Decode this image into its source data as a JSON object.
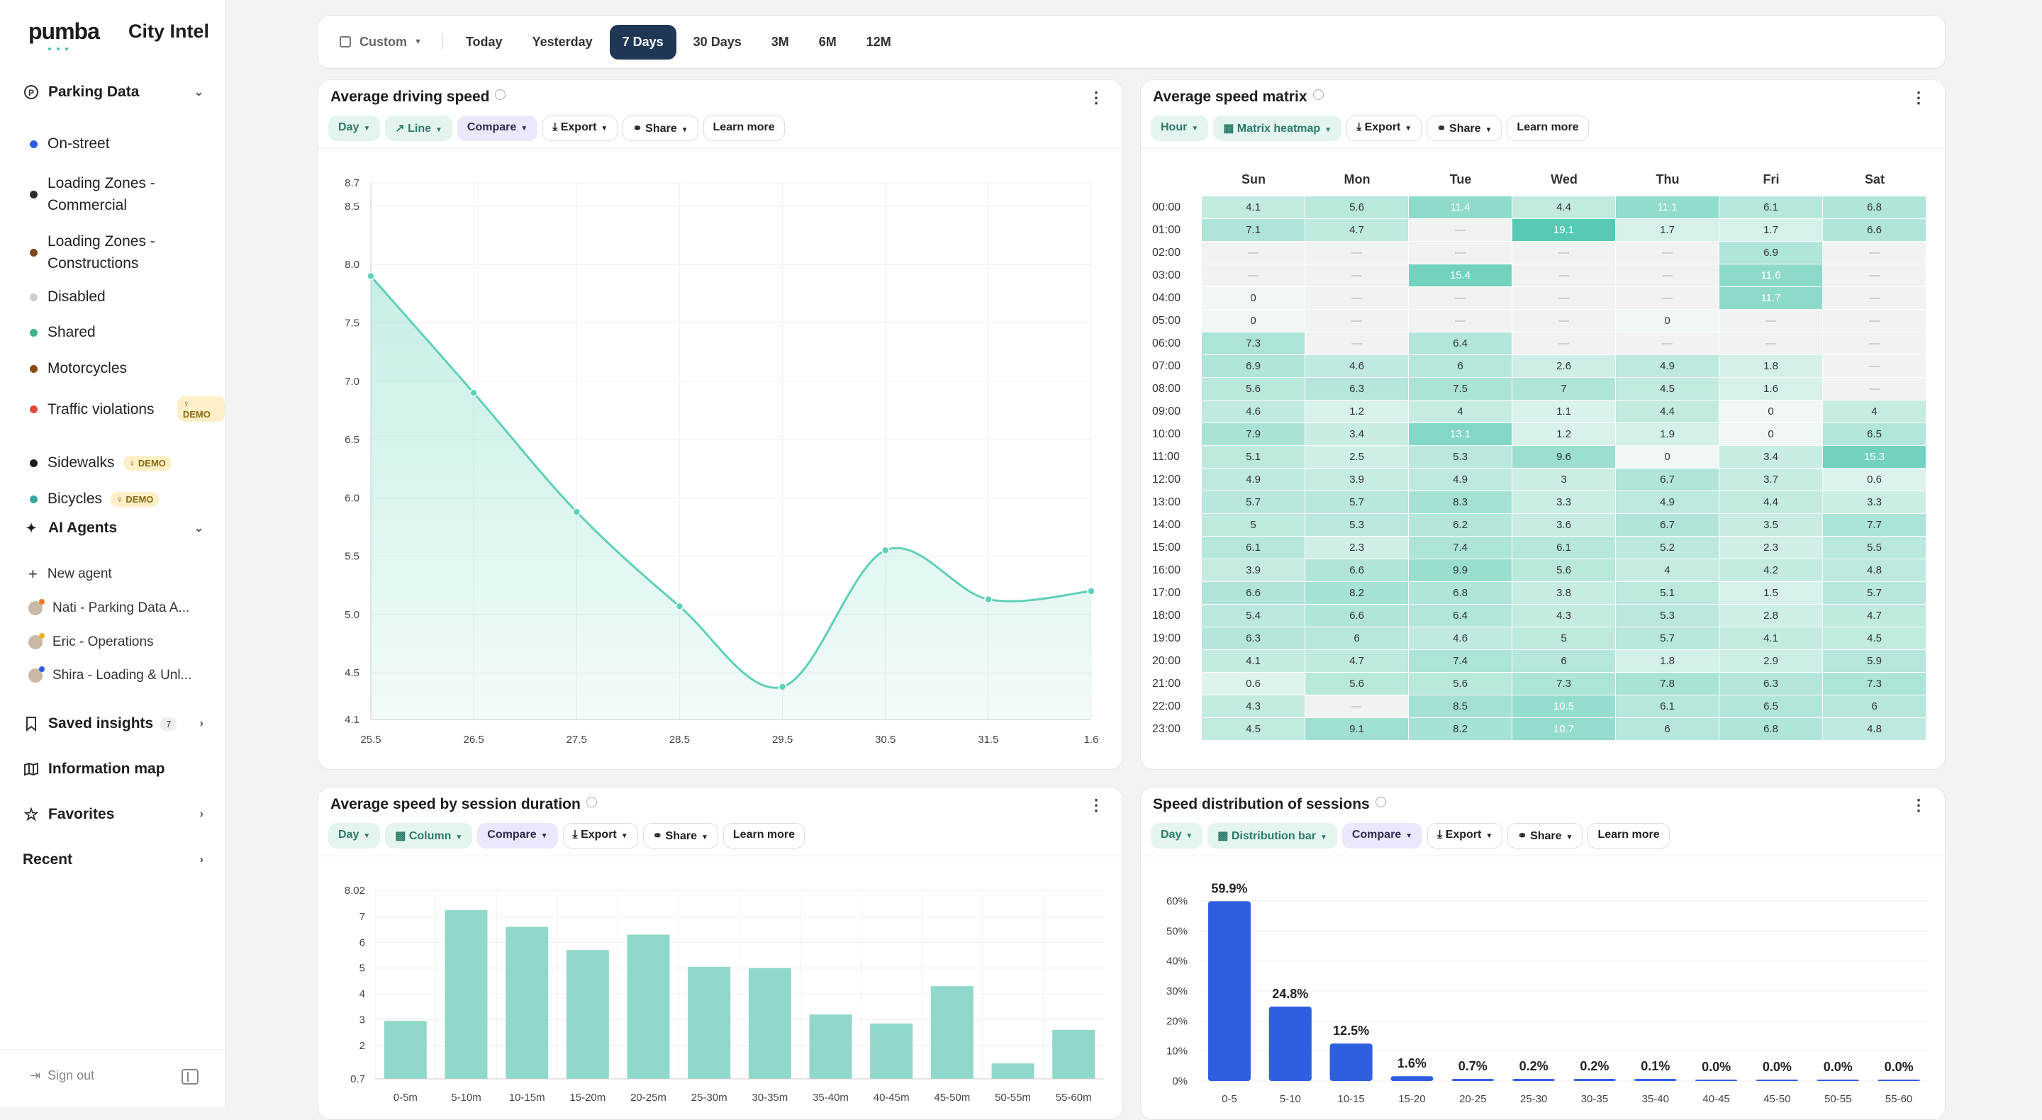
{
  "brand": {
    "logo": "pumba",
    "product": "City Intel"
  },
  "sidebar": {
    "parking": {
      "label": "Parking Data",
      "items": [
        {
          "label": "On-street",
          "color": "#2d5be3"
        },
        {
          "label": "Loading Zones - Commercial",
          "color": "#2b2b2b"
        },
        {
          "label": "Loading Zones - Constructions",
          "color": "#7b4a1e"
        },
        {
          "label": "Disabled",
          "color": "#cfcfcf"
        },
        {
          "label": "Shared",
          "color": "#3cb58a"
        },
        {
          "label": "Motorcycles",
          "color": "#8a4a12"
        },
        {
          "label": "Traffic violations",
          "color": "#e24a3b",
          "badge": "DEMO"
        },
        {
          "label": "Sidewalks",
          "color": "#1a1a1a",
          "badge": "DEMO"
        },
        {
          "label": "Bicycles",
          "color": "#35a7a0",
          "badge": "DEMO"
        }
      ]
    },
    "agents": {
      "label": "AI Agents",
      "new": "New agent",
      "items": [
        {
          "label": "Nati - Parking Data A...",
          "dot": "#f07b2c"
        },
        {
          "label": "Eric - Operations",
          "dot": "#e9b323"
        },
        {
          "label": "Shira - Loading & Unl...",
          "dot": "#2d5be3"
        }
      ]
    },
    "saved": {
      "label": "Saved insights",
      "count": "7"
    },
    "map": "Information map",
    "favorites": "Favorites",
    "recent": "Recent",
    "signout": "Sign out"
  },
  "topbar": {
    "custom": "Custom",
    "ranges": [
      "Today",
      "Yesterday",
      "7 Days",
      "30 Days",
      "3M",
      "6M",
      "12M"
    ],
    "active": "7 Days"
  },
  "common": {
    "export": "Export",
    "share": "Share",
    "learn": "Learn more",
    "compare": "Compare"
  },
  "card1": {
    "title": "Average driving speed",
    "granularity": "Day",
    "chart": "Line"
  },
  "card2": {
    "title": "Average speed matrix",
    "granularity": "Hour",
    "chart": "Matrix heatmap"
  },
  "card3": {
    "title": "Average speed by session duration",
    "granularity": "Day",
    "chart": "Column"
  },
  "card4": {
    "title": "Speed distribution of sessions",
    "granularity": "Day",
    "chart": "Distribution bar"
  },
  "chart_data": [
    {
      "type": "area",
      "x": [
        "25.5",
        "26.5",
        "27.5",
        "28.5",
        "29.5",
        "30.5",
        "31.5",
        "1.6"
      ],
      "values": [
        7.9,
        6.9,
        5.88,
        5.07,
        4.38,
        5.55,
        5.13,
        5.2
      ],
      "yticks": [
        "8.7",
        "8.5",
        "8.0",
        "7.5",
        "7.0",
        "6.5",
        "6.0",
        "5.5",
        "5.0",
        "4.5",
        "4.1"
      ],
      "ylim": [
        4.1,
        8.7
      ],
      "color": "#5fd0b9"
    },
    {
      "type": "heatmap",
      "days": [
        "Sun",
        "Mon",
        "Tue",
        "Wed",
        "Thu",
        "Fri",
        "Sat"
      ],
      "hours": [
        "00:00",
        "01:00",
        "02:00",
        "03:00",
        "04:00",
        "05:00",
        "06:00",
        "07:00",
        "08:00",
        "09:00",
        "10:00",
        "11:00",
        "12:00",
        "13:00",
        "14:00",
        "15:00",
        "16:00",
        "17:00",
        "18:00",
        "19:00",
        "20:00",
        "21:00",
        "22:00",
        "23:00"
      ],
      "values": [
        [
          "4.1",
          "5.6",
          "11.4",
          "4.4",
          "11.1",
          "6.1",
          "6.8"
        ],
        [
          "7.1",
          "4.7",
          "—",
          "19.1",
          "1.7",
          "1.7",
          "6.6"
        ],
        [
          "—",
          "—",
          "—",
          "—",
          "—",
          "6.9",
          "—"
        ],
        [
          "—",
          "—",
          "15.4",
          "—",
          "—",
          "11.6",
          "—"
        ],
        [
          "0",
          "—",
          "—",
          "—",
          "—",
          "11.7",
          "—"
        ],
        [
          "0",
          "—",
          "—",
          "—",
          "0",
          "—",
          "—"
        ],
        [
          "7.3",
          "—",
          "6.4",
          "—",
          "—",
          "—",
          "—"
        ],
        [
          "6.9",
          "4.6",
          "6",
          "2.6",
          "4.9",
          "1.8",
          "—"
        ],
        [
          "5.6",
          "6.3",
          "7.5",
          "7",
          "4.5",
          "1.6",
          "—"
        ],
        [
          "4.6",
          "1.2",
          "4",
          "1.1",
          "4.4",
          "0",
          "4"
        ],
        [
          "7.9",
          "3.4",
          "13.1",
          "1.2",
          "1.9",
          "0",
          "6.5"
        ],
        [
          "5.1",
          "2.5",
          "5.3",
          "9.6",
          "0",
          "3.4",
          "15.3"
        ],
        [
          "4.9",
          "3.9",
          "4.9",
          "3",
          "6.7",
          "3.7",
          "0.6"
        ],
        [
          "5.7",
          "5.7",
          "8.3",
          "3.3",
          "4.9",
          "4.4",
          "3.3"
        ],
        [
          "5",
          "5.3",
          "6.2",
          "3.6",
          "6.7",
          "3.5",
          "7.7"
        ],
        [
          "6.1",
          "2.3",
          "7.4",
          "6.1",
          "5.2",
          "2.3",
          "5.5"
        ],
        [
          "3.9",
          "6.6",
          "9.9",
          "5.6",
          "4",
          "4.2",
          "4.8"
        ],
        [
          "6.6",
          "8.2",
          "6.8",
          "3.8",
          "5.1",
          "1.5",
          "5.7"
        ],
        [
          "5.4",
          "6.6",
          "6.4",
          "4.3",
          "5.3",
          "2.8",
          "4.7"
        ],
        [
          "6.3",
          "6",
          "4.6",
          "5",
          "5.7",
          "4.1",
          "4.5"
        ],
        [
          "4.1",
          "4.7",
          "7.4",
          "6",
          "1.8",
          "2.9",
          "5.9"
        ],
        [
          "0.6",
          "5.6",
          "5.6",
          "7.3",
          "7.8",
          "6.3",
          "7.3"
        ],
        [
          "4.3",
          "—",
          "8.5",
          "10.5",
          "6.1",
          "6.5",
          "6"
        ],
        [
          "4.5",
          "9.1",
          "8.2",
          "10.7",
          "6",
          "6.8",
          "4.8"
        ]
      ]
    },
    {
      "type": "bar",
      "categories": [
        "0-5m",
        "5-10m",
        "10-15m",
        "15-20m",
        "20-25m",
        "25-30m",
        "30-35m",
        "35-40m",
        "40-45m",
        "45-50m",
        "50-55m",
        "55-60m"
      ],
      "values": [
        2.95,
        7.25,
        6.6,
        5.7,
        6.3,
        5.05,
        5.0,
        3.2,
        2.85,
        4.3,
        1.3,
        2.6
      ],
      "yticks": [
        "8.02",
        "7",
        "6",
        "5",
        "4",
        "3",
        "2",
        "0.7"
      ],
      "ylim": [
        0.7,
        8.02
      ],
      "color": "#8fd8ca"
    },
    {
      "type": "bar",
      "categories": [
        "0-5",
        "5-10",
        "10-15",
        "15-20",
        "20-25",
        "25-30",
        "30-35",
        "35-40",
        "40-45",
        "45-50",
        "50-55",
        "55-60"
      ],
      "values": [
        59.9,
        24.8,
        12.5,
        1.6,
        0.7,
        0.2,
        0.2,
        0.1,
        0.0,
        0.0,
        0.0,
        0.0
      ],
      "labels": [
        "59.9%",
        "24.8%",
        "12.5%",
        "1.6%",
        "0.7%",
        "0.2%",
        "0.2%",
        "0.1%",
        "0.0%",
        "0.0%",
        "0.0%",
        "0.0%"
      ],
      "yticks": [
        "60%",
        "50%",
        "40%",
        "30%",
        "20%",
        "10%",
        "0%"
      ],
      "ylim": [
        0,
        60
      ],
      "color": "#2f5fe0"
    }
  ]
}
